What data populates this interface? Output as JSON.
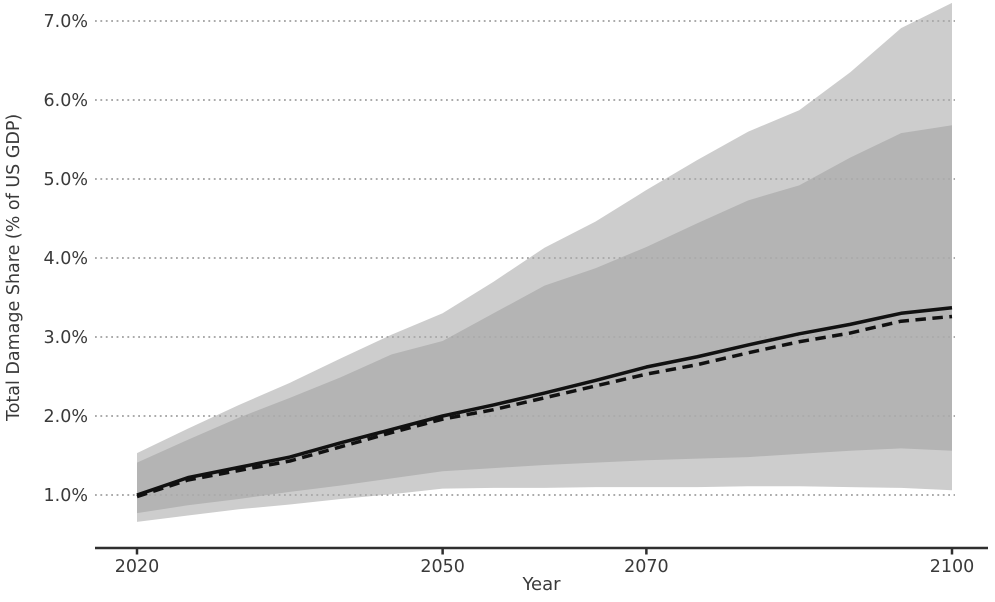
{
  "chart_data": {
    "type": "line",
    "title": "",
    "xlabel": "Year",
    "ylabel": "Total Damage Share (% of US GDP)",
    "grid": "dotted-horizontal",
    "legend": "none",
    "xlim": [
      2020,
      2100
    ],
    "ylim_pct": [
      0.45,
      7.35
    ],
    "x_ticks": [
      2020,
      2050,
      2070,
      2100
    ],
    "y_ticks": [
      {
        "value": 1,
        "label": "1.0%"
      },
      {
        "value": 2,
        "label": "2.0%"
      },
      {
        "value": 3,
        "label": "3.0%"
      },
      {
        "value": 4,
        "label": "4.0%"
      },
      {
        "value": 5,
        "label": "5.0%"
      },
      {
        "value": 6,
        "label": "6.0%"
      },
      {
        "value": 7,
        "label": "7.0%"
      }
    ],
    "x": [
      2020,
      2025,
      2030,
      2035,
      2040,
      2045,
      2050,
      2055,
      2060,
      2065,
      2070,
      2075,
      2080,
      2085,
      2090,
      2095,
      2100
    ],
    "series": [
      {
        "name": "central-estimate-solid",
        "style": "solid",
        "values": [
          1.0,
          1.22,
          1.35,
          1.48,
          1.66,
          1.83,
          2.0,
          2.14,
          2.29,
          2.45,
          2.62,
          2.75,
          2.9,
          3.04,
          3.16,
          3.3,
          3.37
        ]
      },
      {
        "name": "alternative-estimate-dashed",
        "style": "dashed",
        "values": [
          0.98,
          1.19,
          1.31,
          1.43,
          1.61,
          1.79,
          1.96,
          2.08,
          2.23,
          2.38,
          2.53,
          2.65,
          2.8,
          2.94,
          3.05,
          3.2,
          3.26
        ]
      }
    ],
    "bands": [
      {
        "name": "outer-uncertainty-band",
        "color": "#cdcdcd",
        "lower": [
          0.66,
          0.74,
          0.82,
          0.88,
          0.95,
          1.01,
          1.08,
          1.09,
          1.09,
          1.1,
          1.1,
          1.1,
          1.11,
          1.11,
          1.1,
          1.09,
          1.06
        ],
        "upper": [
          1.53,
          1.84,
          2.14,
          2.42,
          2.73,
          3.03,
          3.3,
          3.7,
          4.13,
          4.46,
          4.86,
          5.24,
          5.6,
          5.87,
          6.35,
          6.91,
          7.23
        ]
      },
      {
        "name": "inner-uncertainty-band",
        "color": "#b4b4b4",
        "lower": [
          0.77,
          0.87,
          0.95,
          1.04,
          1.12,
          1.21,
          1.3,
          1.34,
          1.38,
          1.41,
          1.44,
          1.46,
          1.48,
          1.52,
          1.56,
          1.59,
          1.56
        ],
        "upper": [
          1.41,
          1.7,
          1.98,
          2.23,
          2.49,
          2.78,
          2.95,
          3.3,
          3.65,
          3.87,
          4.14,
          4.44,
          4.73,
          4.92,
          5.27,
          5.58,
          5.68
        ]
      }
    ],
    "colors": {
      "line": "#111111",
      "grid": "#ababab",
      "axis": "#2f2f2f",
      "text": "#3a3a3a",
      "background": "#ffffff"
    }
  }
}
